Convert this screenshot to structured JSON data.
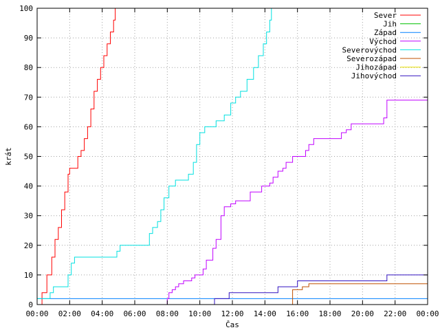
{
  "chart_data": {
    "type": "line",
    "title": "",
    "xlabel": "Čas",
    "ylabel": "krát",
    "x_ticks": [
      "00:00",
      "02:00",
      "04:00",
      "06:00",
      "08:00",
      "10:00",
      "12:00",
      "14:00",
      "16:00",
      "18:00",
      "20:00",
      "22:00",
      "00:00"
    ],
    "x_range_hours": [
      0,
      24
    ],
    "ylim": [
      0,
      100
    ],
    "y_ticks": [
      "0",
      "10",
      "20",
      "30",
      "40",
      "50",
      "60",
      "70",
      "80",
      "90",
      "100"
    ],
    "grid": true,
    "legend_position": "top-right",
    "series": [
      {
        "name": "Sever",
        "color": "#ff0000",
        "x": [
          0.1,
          0.3,
          0.6,
          0.9,
          1.1,
          1.3,
          1.5,
          1.7,
          1.9,
          2.0,
          2.4,
          2.5,
          2.7,
          2.9,
          3.1,
          3.3,
          3.5,
          3.7,
          3.9,
          4.1,
          4.3,
          4.5,
          4.7,
          4.8,
          5.0
        ],
        "y": [
          0,
          4,
          10,
          16,
          22,
          26,
          32,
          38,
          44,
          46,
          46,
          50,
          52,
          56,
          60,
          66,
          72,
          76,
          80,
          84,
          88,
          92,
          96,
          100,
          100
        ]
      },
      {
        "name": "Jih",
        "color": "#00c000",
        "x": [],
        "y": []
      },
      {
        "name": "Západ",
        "color": "#0080ff",
        "x": [
          0,
          0.3,
          12.5,
          12.6,
          24
        ],
        "y": [
          2,
          2,
          2,
          2,
          2
        ]
      },
      {
        "name": "Východ",
        "color": "#c000ff",
        "x": [
          7.9,
          8.0,
          8.1,
          8.3,
          8.5,
          8.7,
          9.0,
          9.4,
          9.5,
          9.7,
          10.0,
          10.2,
          10.4,
          10.8,
          11.0,
          11.3,
          11.5,
          11.9,
          12.2,
          12.9,
          13.1,
          13.6,
          13.8,
          14.3,
          14.5,
          14.8,
          15.1,
          15.3,
          15.7,
          15.9,
          16.5,
          16.7,
          17.0,
          17.2,
          17.5,
          18.3,
          18.7,
          19.0,
          19.3,
          20.7,
          21.1,
          21.3,
          21.5,
          22.5,
          23.0,
          24.0
        ],
        "y": [
          0,
          2,
          4,
          5,
          6,
          7,
          8,
          8,
          9,
          10,
          10,
          12,
          15,
          19,
          22,
          30,
          33,
          34,
          35,
          35,
          38,
          38,
          40,
          41,
          43,
          45,
          46,
          48,
          50,
          50,
          52,
          54,
          56,
          56,
          56,
          56,
          58,
          59,
          61,
          61,
          61,
          63,
          69,
          69,
          69,
          69
        ]
      },
      {
        "name": "Severovýchod",
        "color": "#00e0e0",
        "x": [
          0,
          0.5,
          0.8,
          1.0,
          1.7,
          1.9,
          2.1,
          2.3,
          2.5,
          3.5,
          4.0,
          4.7,
          4.9,
          5.1,
          5.5,
          6.5,
          6.9,
          7.1,
          7.4,
          7.6,
          7.8,
          8.1,
          8.5,
          9.1,
          9.3,
          9.6,
          9.8,
          10.0,
          10.3,
          10.7,
          11.0,
          11.3,
          11.5,
          11.9,
          12.2,
          12.5,
          12.9,
          13.3,
          13.6,
          13.9,
          14.1,
          14.3,
          14.4
        ],
        "y": [
          2,
          2,
          4,
          6,
          6,
          10,
          14,
          16,
          16,
          16,
          16,
          16,
          18,
          20,
          20,
          20,
          24,
          26,
          28,
          32,
          36,
          40,
          42,
          42,
          44,
          48,
          54,
          58,
          60,
          60,
          62,
          62,
          64,
          68,
          70,
          72,
          76,
          80,
          84,
          88,
          92,
          96,
          100
        ]
      },
      {
        "name": "Severozápad",
        "color": "#c05000",
        "x": [
          15.5,
          15.7,
          16.2,
          16.3,
          16.7,
          17.0,
          24.0
        ],
        "y": [
          0,
          5,
          5,
          6,
          7,
          7,
          7
        ]
      },
      {
        "name": "Jihozápad",
        "color": "#e8e000",
        "x": [],
        "y": []
      },
      {
        "name": "Jihovýchod",
        "color": "#3010c0",
        "x": [
          10.7,
          10.9,
          11.5,
          11.8,
          12.6,
          14.2,
          14.8,
          15.5,
          16.0,
          16.6,
          18.5,
          21.0,
          21.5,
          22.5,
          24.0
        ],
        "y": [
          0,
          2,
          2,
          4,
          4,
          4,
          6,
          6,
          8,
          8,
          8,
          8,
          10,
          10,
          10
        ]
      }
    ]
  }
}
